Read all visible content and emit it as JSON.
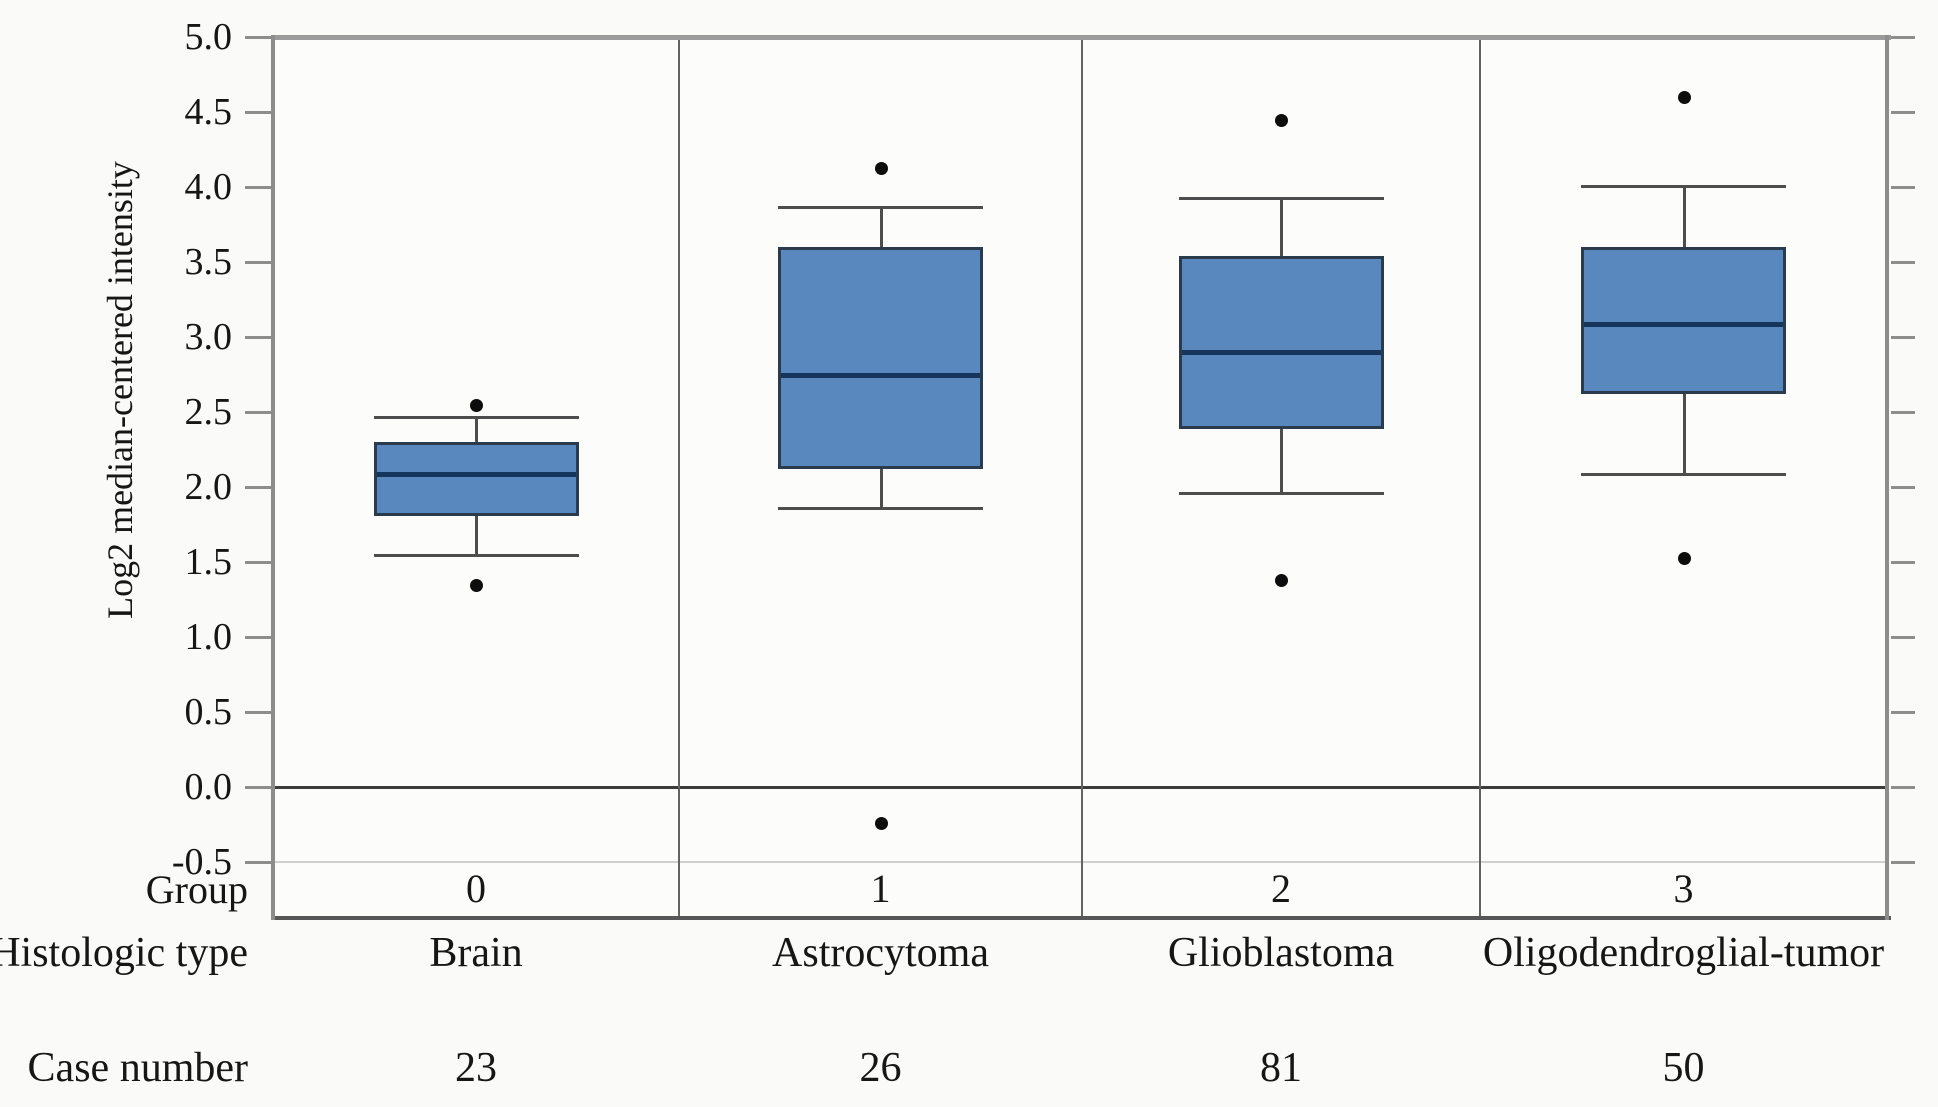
{
  "chart_data": {
    "type": "box",
    "title": "",
    "ylabel": "Log2 median-centered intensity",
    "y_axis": {
      "min": -0.5,
      "max": 5.0,
      "step": 0.5,
      "ticks": [
        {
          "label": "5.0",
          "value": 5.0
        },
        {
          "label": "4.5",
          "value": 4.5
        },
        {
          "label": "4.0",
          "value": 4.0
        },
        {
          "label": "3.5",
          "value": 3.5
        },
        {
          "label": "3.0",
          "value": 3.0
        },
        {
          "label": "2.5",
          "value": 2.5
        },
        {
          "label": "2.0",
          "value": 2.0
        },
        {
          "label": "1.5",
          "value": 1.5
        },
        {
          "label": "1.0",
          "value": 1.0
        },
        {
          "label": "0.5",
          "value": 0.5
        },
        {
          "label": "0.0",
          "value": 0.0
        },
        {
          "label": "-0.5",
          "value": -0.5
        }
      ]
    },
    "reference_lines": [
      {
        "value": 0.0,
        "style": "dark"
      },
      {
        "value": -0.5,
        "style": "light"
      }
    ],
    "grid": false,
    "legend": null,
    "row_headers": {
      "group": "Group",
      "histologic_type": "Histologic type",
      "case_number": "Case number"
    },
    "groups": [
      {
        "group": "0",
        "histologic_type": "Brain",
        "case_number": "23",
        "whisker_low": 1.55,
        "q1": 1.81,
        "median": 2.09,
        "q3": 2.3,
        "whisker_high": 2.47,
        "outliers": [
          2.55,
          1.35
        ]
      },
      {
        "group": "1",
        "histologic_type": "Astrocytoma",
        "case_number": "26",
        "whisker_low": 1.86,
        "q1": 2.12,
        "median": 2.75,
        "q3": 3.6,
        "whisker_high": 3.87,
        "outliers": [
          4.13,
          -0.24
        ]
      },
      {
        "group": "2",
        "histologic_type": "Glioblastoma",
        "case_number": "81",
        "whisker_low": 1.96,
        "q1": 2.39,
        "median": 2.9,
        "q3": 3.54,
        "whisker_high": 3.93,
        "outliers": [
          4.45,
          1.38
        ]
      },
      {
        "group": "3",
        "histologic_type": "Oligodendroglial-tumor",
        "case_number": "50",
        "whisker_low": 2.09,
        "q1": 2.62,
        "median": 3.09,
        "q3": 3.6,
        "whisker_high": 4.01,
        "outliers": [
          4.6,
          1.53
        ]
      }
    ],
    "style": {
      "box_fill": "#5888bd",
      "box_border": "#2b3b4e",
      "median_color": "#16355c",
      "whisker_color": "#4d4d4d",
      "outlier_color": "#0d0d0d",
      "frame_color": "#8d8d8d",
      "zero_line_color": "#3c3c3c",
      "light_line_color": "#cfcfcf",
      "text_color": "#161616"
    }
  }
}
